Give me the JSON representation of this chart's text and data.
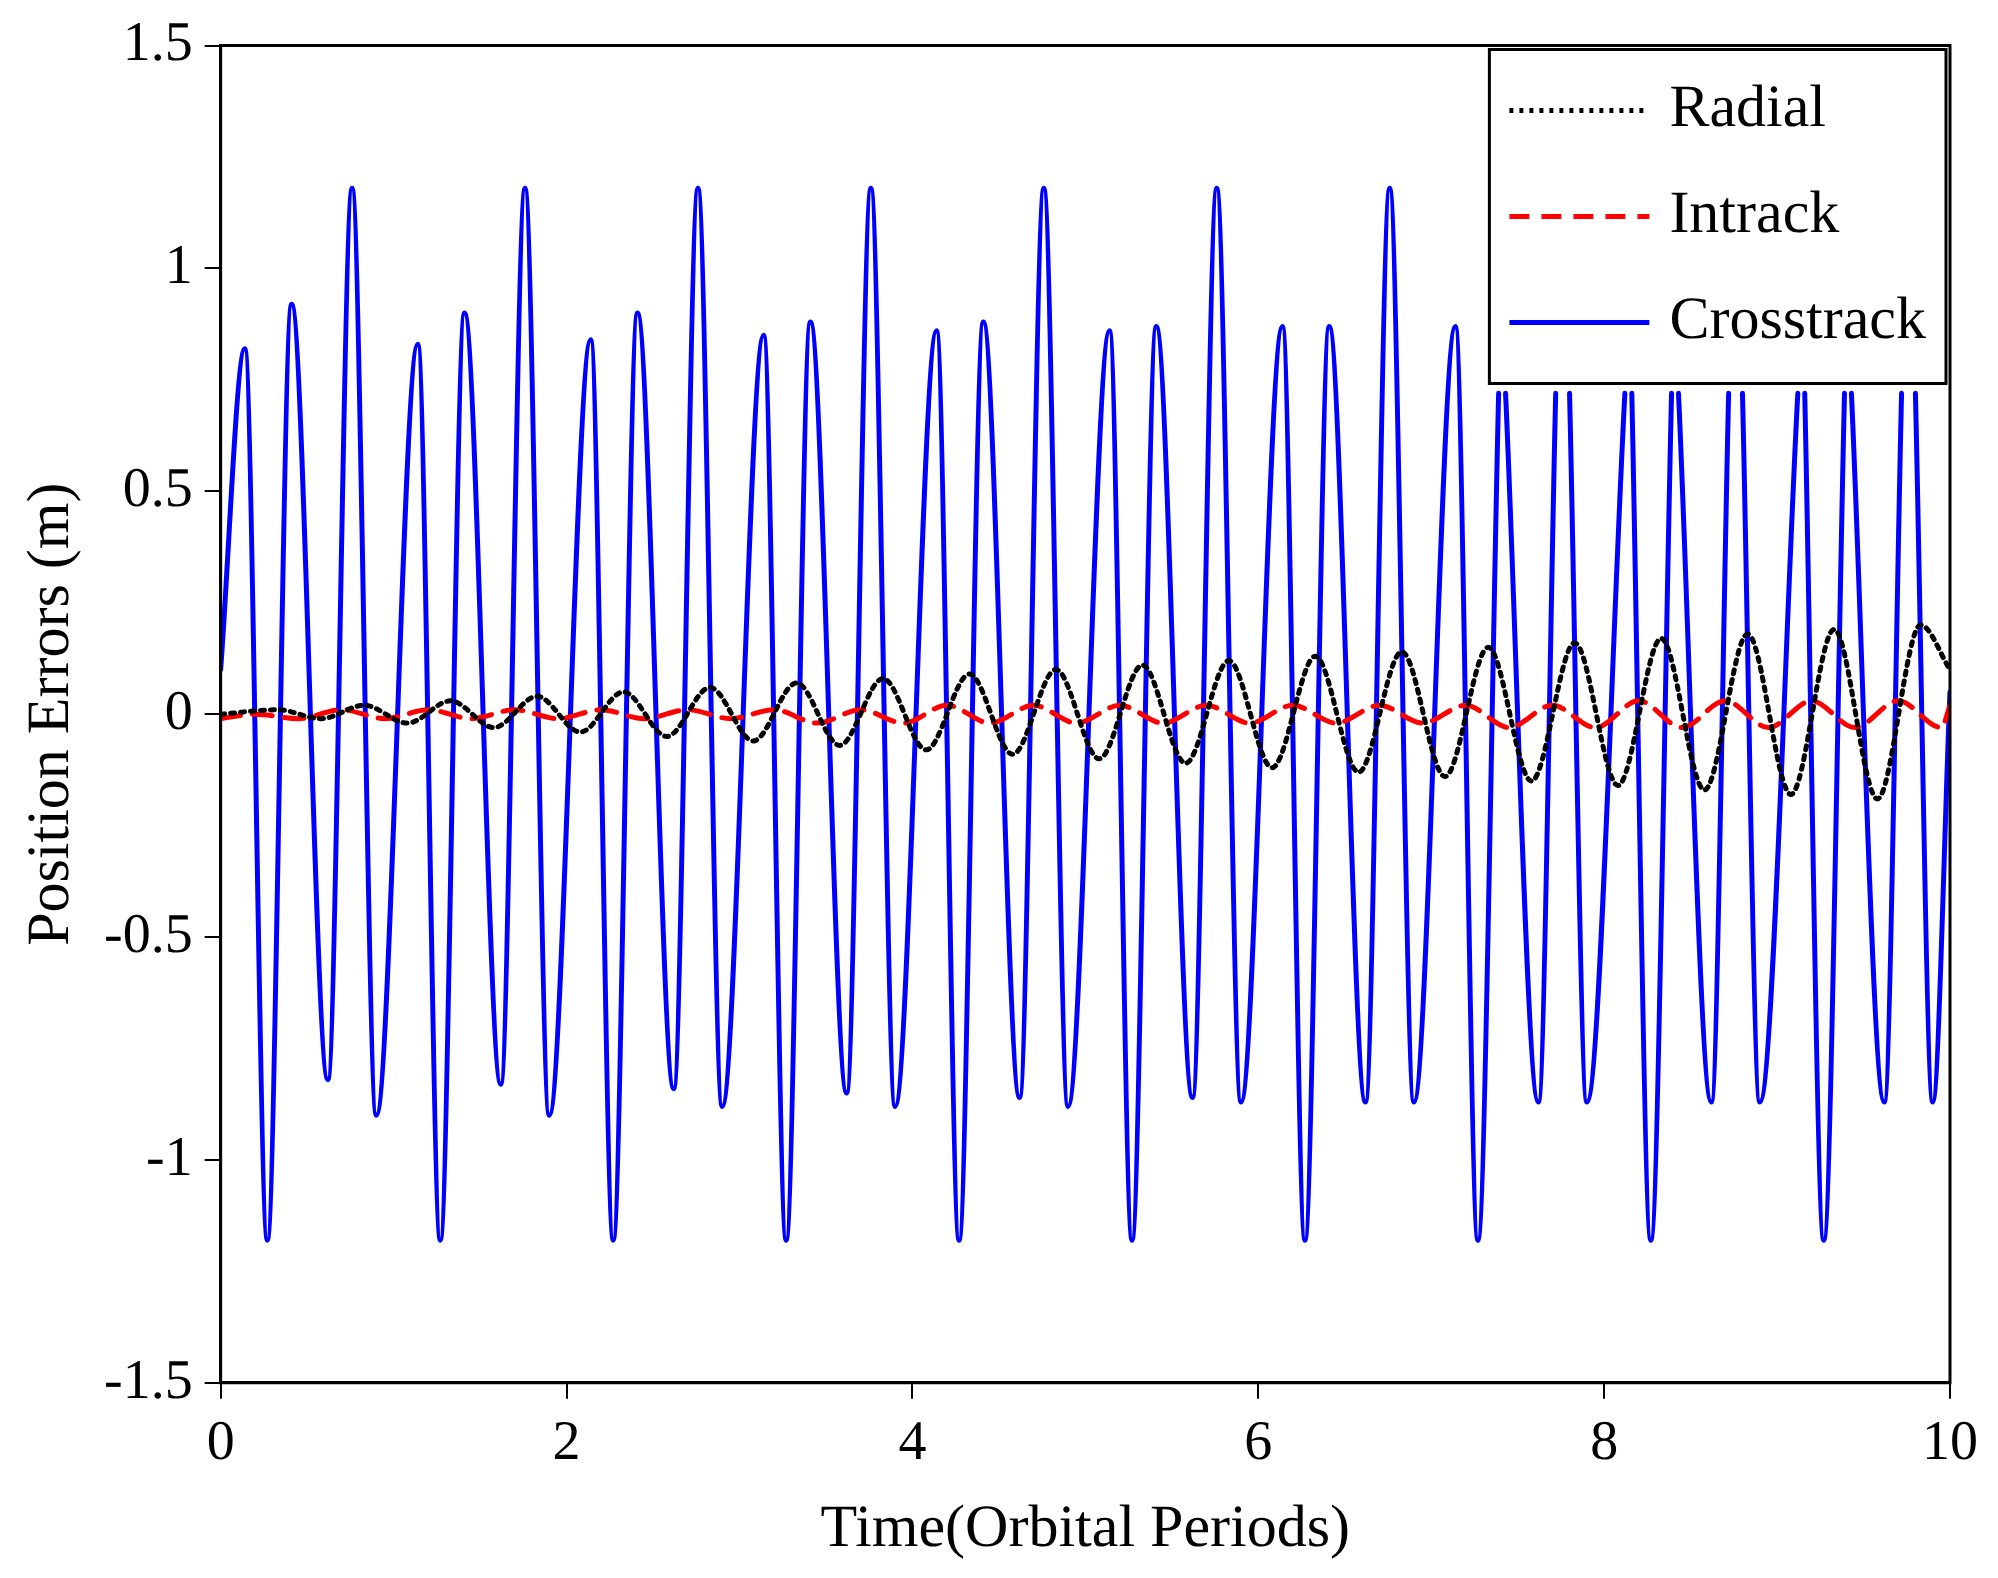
{
  "chart_data": {
    "type": "line",
    "xlabel": "Time(Orbital Periods)",
    "ylabel": "Position Errors (m)",
    "xlim": [
      0,
      10
    ],
    "xticks": [
      0,
      2,
      4,
      6,
      8,
      10
    ],
    "ylim": [
      -1.5,
      1.5
    ],
    "yticks": [
      -1.5,
      -1,
      -0.5,
      0,
      0.5,
      1,
      1.5
    ],
    "grid": false,
    "legend": "top right",
    "marker": "none",
    "series": [
      {
        "name": "Radial",
        "color": "#000000",
        "line_style": "dotted",
        "x": [
          0,
          0.33,
          0.58,
          0.83,
          1.08,
          1.33,
          1.58,
          1.83,
          2.08,
          2.33,
          2.58,
          2.83,
          3.08,
          3.33,
          3.58,
          3.83,
          4.08,
          4.33,
          4.58,
          4.83,
          5.08,
          5.33,
          5.58,
          5.83,
          6.08,
          6.33,
          6.58,
          6.83,
          7.08,
          7.33,
          7.58,
          7.83,
          8.08,
          8.33,
          8.58,
          8.83,
          9.08,
          9.33,
          9.58,
          9.83,
          10
        ],
        "values": [
          0,
          0.01,
          -0.01,
          0.02,
          -0.02,
          0.03,
          -0.03,
          0.04,
          -0.04,
          0.05,
          -0.05,
          0.06,
          -0.06,
          0.07,
          -0.07,
          0.08,
          -0.08,
          0.09,
          -0.09,
          0.1,
          -0.1,
          0.11,
          -0.11,
          0.12,
          -0.12,
          0.13,
          -0.13,
          0.14,
          -0.14,
          0.15,
          -0.15,
          0.16,
          -0.16,
          0.17,
          -0.17,
          0.18,
          -0.18,
          0.19,
          -0.19,
          0.2,
          0.1
        ]
      },
      {
        "name": "Intrack",
        "color": "#ff0000",
        "line_style": "dashed",
        "x": [
          0,
          0.2,
          0.45,
          0.7,
          0.95,
          1.2,
          1.45,
          1.7,
          1.95,
          2.2,
          2.45,
          2.7,
          2.95,
          3.2,
          3.45,
          3.7,
          3.95,
          4.2,
          4.45,
          4.7,
          4.95,
          5.2,
          5.45,
          5.7,
          5.95,
          6.2,
          6.45,
          6.7,
          6.95,
          7.2,
          7.45,
          7.7,
          7.95,
          8.2,
          8.45,
          8.7,
          8.95,
          9.2,
          9.45,
          9.7,
          9.95,
          10
        ],
        "values": [
          -0.01,
          0,
          -0.01,
          0.01,
          -0.01,
          0.01,
          -0.01,
          0.01,
          -0.01,
          0.01,
          -0.01,
          0.01,
          -0.01,
          0.01,
          -0.02,
          0.01,
          -0.02,
          0.02,
          -0.02,
          0.02,
          -0.02,
          0.02,
          -0.02,
          0.02,
          -0.02,
          0.02,
          -0.02,
          0.02,
          -0.02,
          0.02,
          -0.03,
          0.02,
          -0.03,
          0.03,
          -0.03,
          0.03,
          -0.03,
          0.03,
          -0.03,
          0.03,
          -0.03,
          0.02
        ]
      },
      {
        "name": "Crosstrack",
        "color": "#0000ff",
        "line_style": "solid",
        "x": [
          0,
          0.14,
          0.27,
          0.41,
          0.62,
          0.76,
          0.9,
          1.14,
          1.27,
          1.41,
          1.62,
          1.76,
          1.9,
          2.14,
          2.27,
          2.41,
          2.62,
          2.76,
          2.9,
          3.14,
          3.27,
          3.41,
          3.62,
          3.76,
          3.9,
          4.14,
          4.27,
          4.41,
          4.62,
          4.76,
          4.9,
          5.14,
          5.27,
          5.41,
          5.62,
          5.76,
          5.9,
          6.14,
          6.27,
          6.41,
          6.62,
          6.76,
          6.9,
          7.14,
          7.27,
          7.39,
          7.41,
          7.43,
          7.62,
          7.72,
          7.76,
          7.8,
          7.9,
          8.12,
          8.14,
          8.16,
          8.27,
          8.39,
          8.41,
          8.43,
          8.62,
          8.72,
          8.76,
          8.8,
          8.9,
          9.12,
          9.14,
          9.16,
          9.27,
          9.39,
          9.41,
          9.43,
          9.62,
          9.72,
          9.76,
          9.8,
          9.9,
          10
        ],
        "values": [
          0.1,
          0.82,
          -1.18,
          0.92,
          -0.82,
          1.18,
          -0.9,
          0.83,
          -1.18,
          0.9,
          -0.83,
          1.18,
          -0.9,
          0.84,
          -1.18,
          0.9,
          -0.84,
          1.18,
          -0.88,
          0.85,
          -1.18,
          0.88,
          -0.85,
          1.18,
          -0.88,
          0.86,
          -1.18,
          0.88,
          -0.86,
          1.18,
          -0.88,
          0.86,
          -1.18,
          0.87,
          -0.86,
          1.18,
          -0.87,
          0.87,
          -1.18,
          0.87,
          -0.87,
          1.18,
          -0.87,
          0.87,
          -1.18,
          0.72,
          null,
          0.72,
          -0.87,
          0.72,
          null,
          0.72,
          -0.87,
          0.72,
          null,
          0.72,
          -1.18,
          0.72,
          null,
          0.72,
          -0.87,
          0.72,
          null,
          0.72,
          -0.87,
          0.72,
          null,
          0.72,
          -1.18,
          0.72,
          null,
          0.72,
          -0.87,
          0.72,
          null,
          0.72,
          -0.87,
          0.05
        ]
      }
    ]
  }
}
